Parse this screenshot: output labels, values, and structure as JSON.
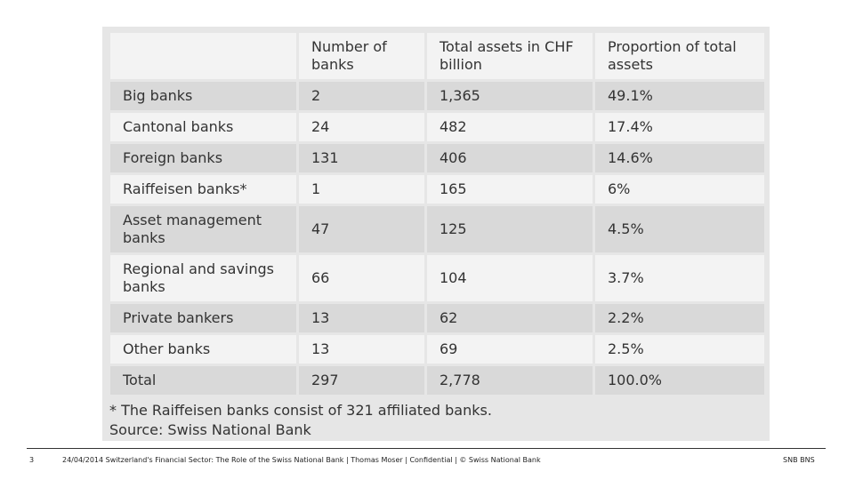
{
  "table": {
    "headers": [
      "",
      "Number of banks",
      "Total assets in CHF billion",
      "Proportion of total assets"
    ],
    "rows": [
      [
        "Big banks",
        "2",
        "1,365",
        "49.1%"
      ],
      [
        "Cantonal banks",
        "24",
        "482",
        "17.4%"
      ],
      [
        "Foreign banks",
        "131",
        "406",
        "14.6%"
      ],
      [
        "Raiffeisen banks*",
        "1",
        "165",
        "6%"
      ],
      [
        "Asset management banks",
        "47",
        "125",
        "4.5%"
      ],
      [
        "Regional and savings banks",
        "66",
        "104",
        "3.7%"
      ],
      [
        "Private bankers",
        "13",
        "62",
        "2.2%"
      ],
      [
        "Other banks",
        "13",
        "69",
        "2.5%"
      ],
      [
        "Total",
        "297",
        "2,778",
        "100.0%"
      ]
    ]
  },
  "note": {
    "line1": "* The Raiffeisen banks consist of 321 affiliated banks.",
    "line2": "Source: Swiss National Bank"
  },
  "footer": {
    "page": "3",
    "text": "24/04/2014  Switzerland's Financial Sector: The Role of the Swiss National Bank  |  Thomas Moser  |  Confidential  |  © Swiss National Bank",
    "logo": "SNB BNS"
  }
}
